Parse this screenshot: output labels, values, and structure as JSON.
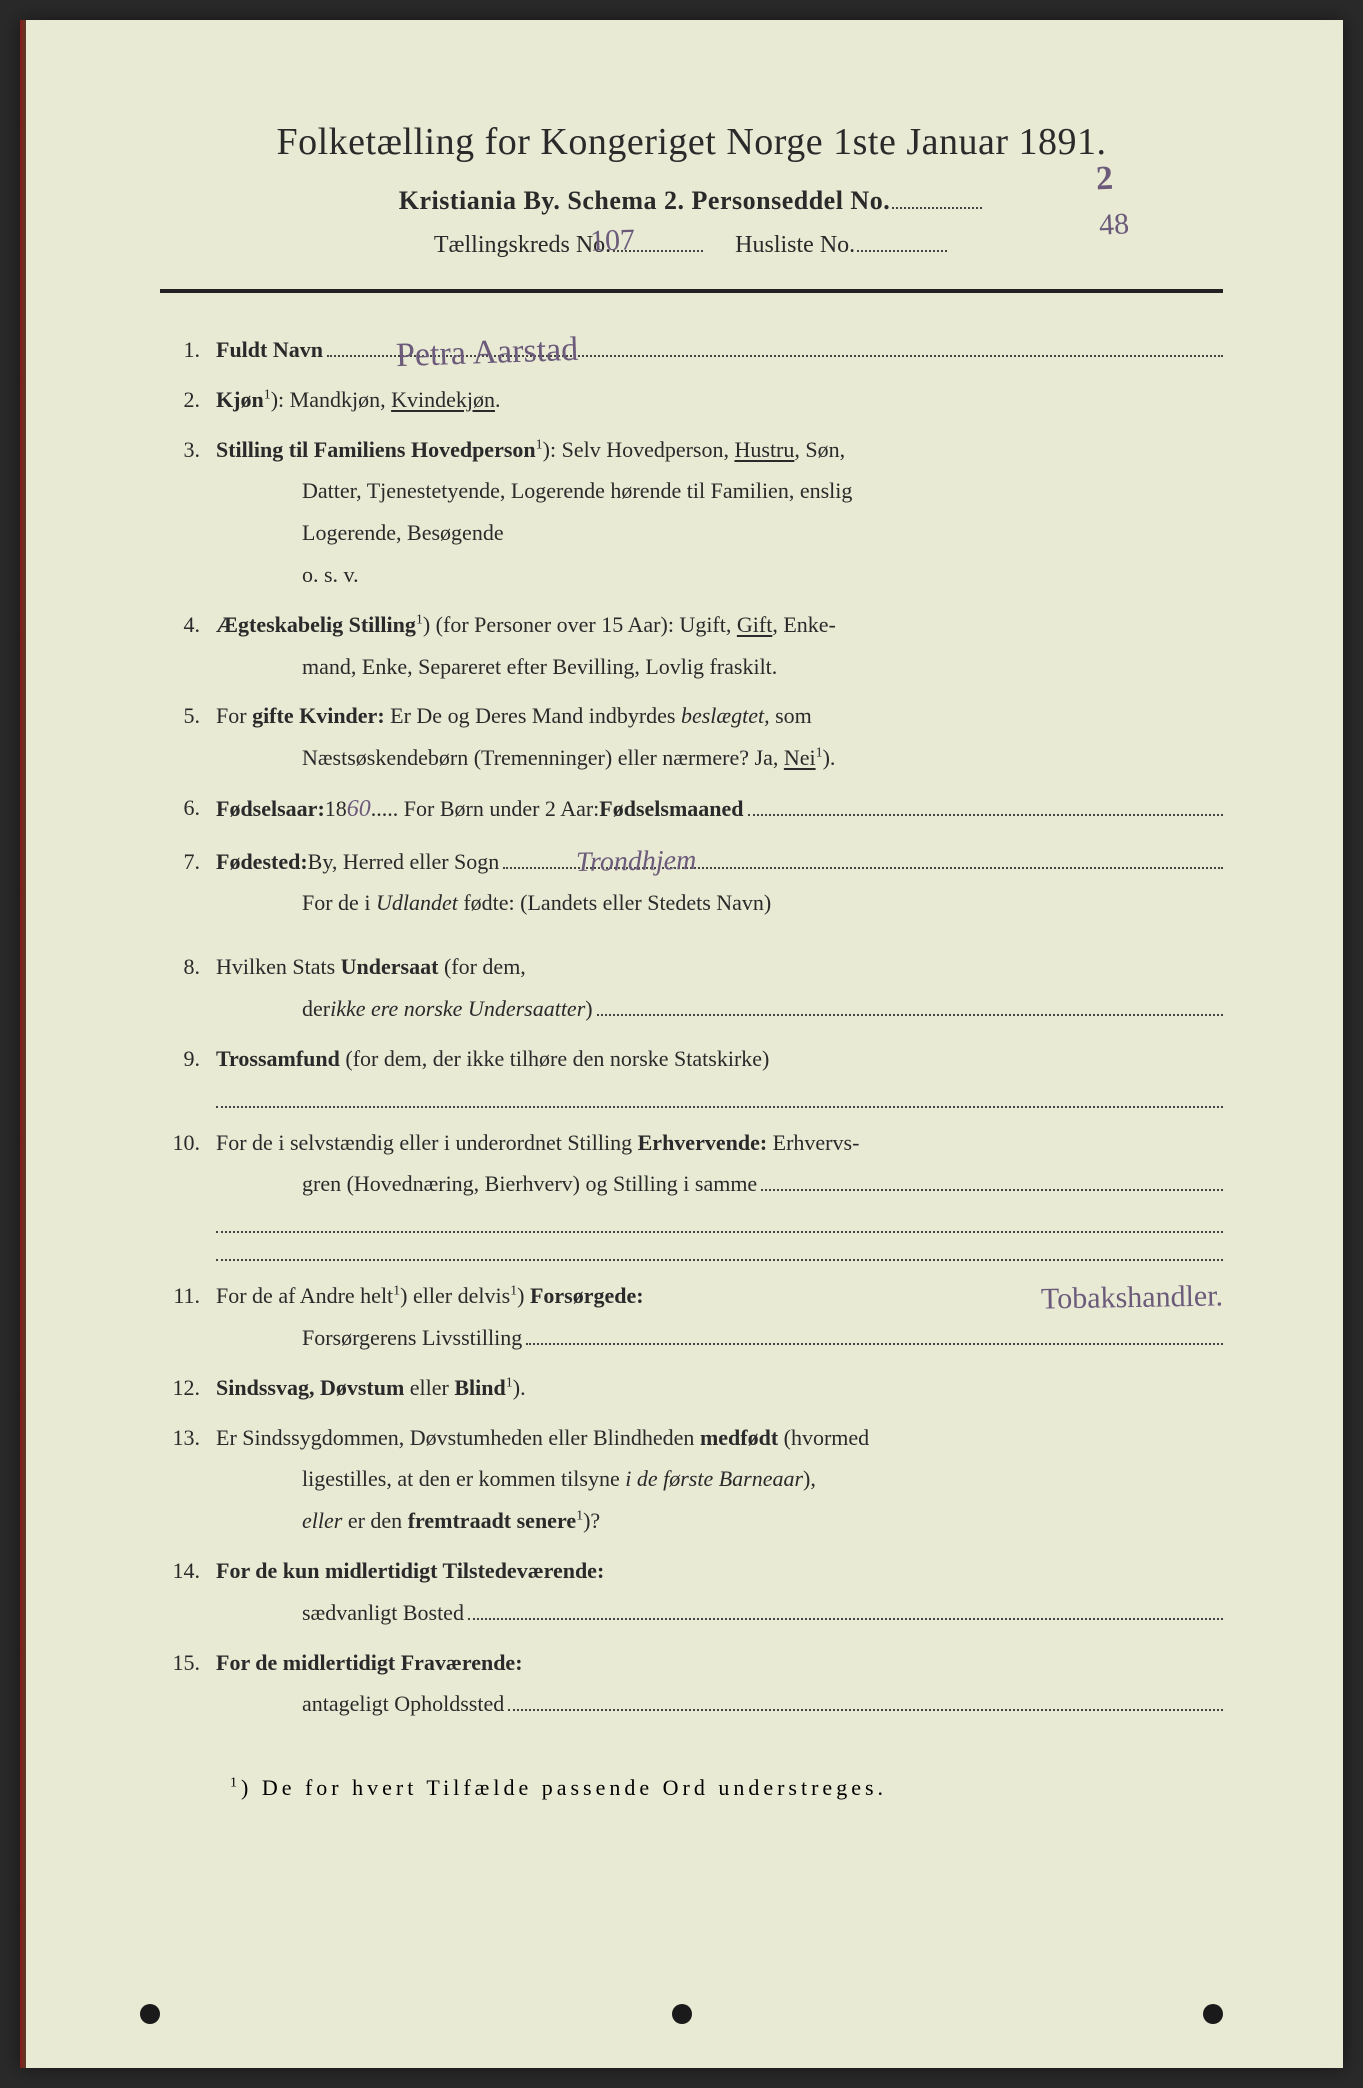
{
  "header": {
    "main_title": "Folketælling for Kongeriget Norge 1ste Januar 1891.",
    "sub_line_prefix": "Kristiania By.   Schema 2.   Personseddel No.",
    "tert_prefix": "Tællingskreds No.",
    "tert_mid": "Husliste No.",
    "handwritten_personseddel_no": "2",
    "handwritten_kreds_no": "107",
    "handwritten_husliste_no": "48"
  },
  "q1": {
    "num": "1.",
    "label": "Fuldt Navn",
    "handwritten_name": "Petra Aarstad"
  },
  "q2": {
    "num": "2.",
    "label": "Kjøn",
    "sup": "1",
    "text_after": "): Mandkjøn, ",
    "underlined": "Kvindekjøn",
    "period": "."
  },
  "q3": {
    "num": "3.",
    "label": "Stilling til Familiens Hovedperson",
    "sup": "1",
    "text1": "): Selv Hovedperson, ",
    "underlined1": "Hustru",
    "text2": ", Søn,",
    "cont1": "Datter, Tjenestetyende, Logerende hørende til Familien, enslig",
    "cont2": "Logerende, Besøgende",
    "cont3": "o. s. v."
  },
  "q4": {
    "num": "4.",
    "label": "Ægteskabelig Stilling",
    "sup": "1",
    "text1": ") (for Personer over 15 Aar): Ugift, ",
    "underlined": "Gift",
    "text2": ", Enke-",
    "cont1": "mand, Enke, Separeret efter Bevilling, Lovlig fraskilt."
  },
  "q5": {
    "num": "5.",
    "label_pre": "For ",
    "label_bold": "gifte Kvinder:",
    "text1": " Er De og Deres Mand indbyrdes ",
    "ital1": "beslægtet,",
    "text2": " som",
    "cont1": "Næstsøskendebørn (Tremenninger) eller nærmere?  Ja, ",
    "underlined": "Nei",
    "sup": "1",
    "text3": ")."
  },
  "q6": {
    "num": "6.",
    "label": "Fødselsaar: ",
    "year_prefix": "18",
    "handwritten_year": "60",
    "text1": ".   For Børn under 2 Aar: ",
    "bold2": "Fødselsmaaned"
  },
  "q7": {
    "num": "7.",
    "label": "Fødested:",
    "text1": " By, Herred eller Sogn",
    "handwritten_place": "Trondhjem",
    "cont_pre": "For de i ",
    "ital": "Udlandet",
    "cont_post": " fødte: (Landets eller Stedets Navn)"
  },
  "q8": {
    "num": "8.",
    "text1": "Hvilken Stats ",
    "bold": "Undersaat",
    "text2": " (for dem,",
    "cont_pre": "der ",
    "ital": "ikke ere norske Undersaatter",
    "cont_post": ")"
  },
  "q9": {
    "num": "9.",
    "label": "Trossamfund",
    "text1": "  (for dem, der ikke tilhøre den norske Statskirke)"
  },
  "q10": {
    "num": "10.",
    "text1": "For de i selvstændig eller i underordnet Stilling ",
    "bold": "Erhvervende:",
    "text2": " Erhvervs-",
    "cont1": "gren (Hovednæring, Bierhverv) og Stilling i samme"
  },
  "q11": {
    "num": "11.",
    "text_pre": "For de af Andre helt",
    "sup1": "1",
    "text_mid": ") eller delvis",
    "sup2": "1",
    "text_post": ") ",
    "bold": "Forsørgede:",
    "handwritten_provider": "Tobakshandler.",
    "cont1": "Forsørgerens Livsstilling"
  },
  "q12": {
    "num": "12.",
    "bold": "Sindssvag, Døvstum",
    "text1": " eller ",
    "bold2": "Blind",
    "sup": "1",
    "text2": ")."
  },
  "q13": {
    "num": "13.",
    "text1": "Er Sindssygdommen, Døvstumheden eller Blindheden ",
    "bold": "medfødt",
    "text2": " (hvormed",
    "cont1_pre": "ligestilles, at den er kommen tilsyne ",
    "ital1": "i de første Barneaar",
    "cont1_post": "),",
    "cont2_ital": "eller",
    "cont2_text": " er den ",
    "cont2_bold": "fremtraadt senere",
    "sup": "1",
    "cont2_end": ")?"
  },
  "q14": {
    "num": "14.",
    "bold1": "For de kun midlertidigt Tilstedeværende:",
    "cont1": "sædvanligt Bosted"
  },
  "q15": {
    "num": "15.",
    "bold1": "For de midlertidigt Fraværende:",
    "cont1": "antageligt Opholdssted"
  },
  "footnote": {
    "sup": "1",
    "text": ") De for hvert Tilfælde passende Ord understreges."
  },
  "colors": {
    "paper": "#e8ead4",
    "ink_print": "#2a2a2a",
    "ink_handwritten": "#6b5a7a",
    "edge": "#8a1a1a"
  }
}
